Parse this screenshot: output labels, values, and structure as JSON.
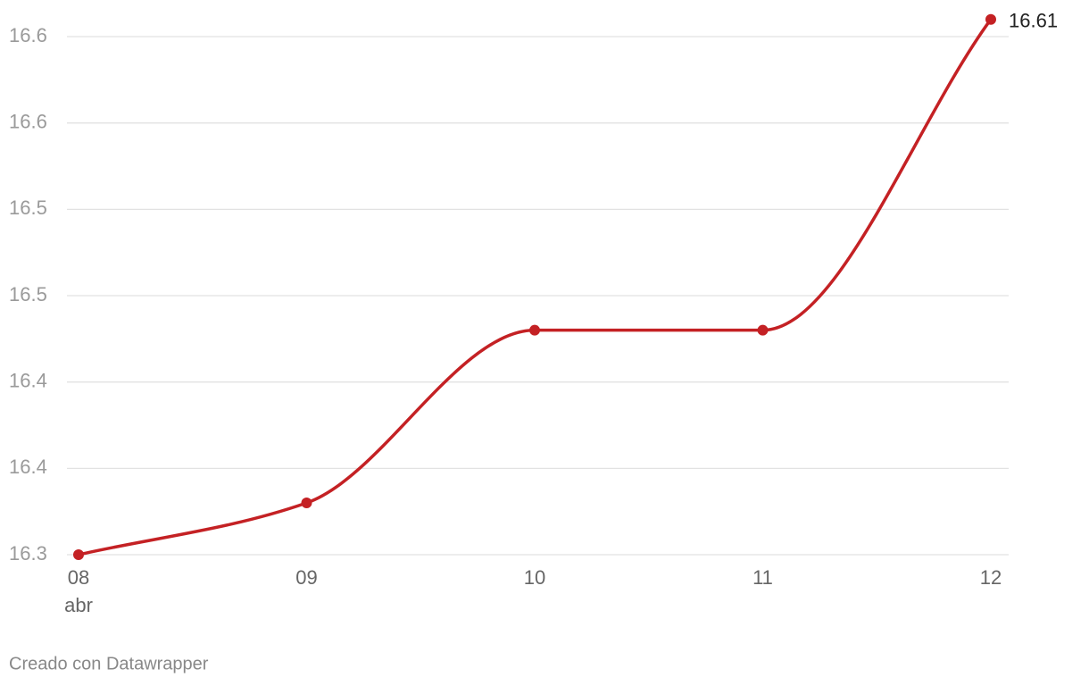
{
  "chart_data": {
    "type": "line",
    "categories": [
      "08",
      "09",
      "10",
      "11",
      "12"
    ],
    "x_period_label": "abr",
    "series": [
      {
        "name": "16.61",
        "color": "#c42124",
        "values": [
          16.3,
          16.33,
          16.43,
          16.43,
          16.61
        ]
      }
    ],
    "ylim": [
      16.3,
      16.61
    ],
    "yticks": [
      16.3,
      {
        "value": 16.35,
        "label": "16.4"
      },
      16.4,
      {
        "value": 16.45,
        "label": "16.5"
      },
      16.5,
      {
        "value": 16.55,
        "label": "16.6"
      },
      16.6
    ],
    "grid": true,
    "label_last": true,
    "credit": "Creado con Datawrapper"
  }
}
